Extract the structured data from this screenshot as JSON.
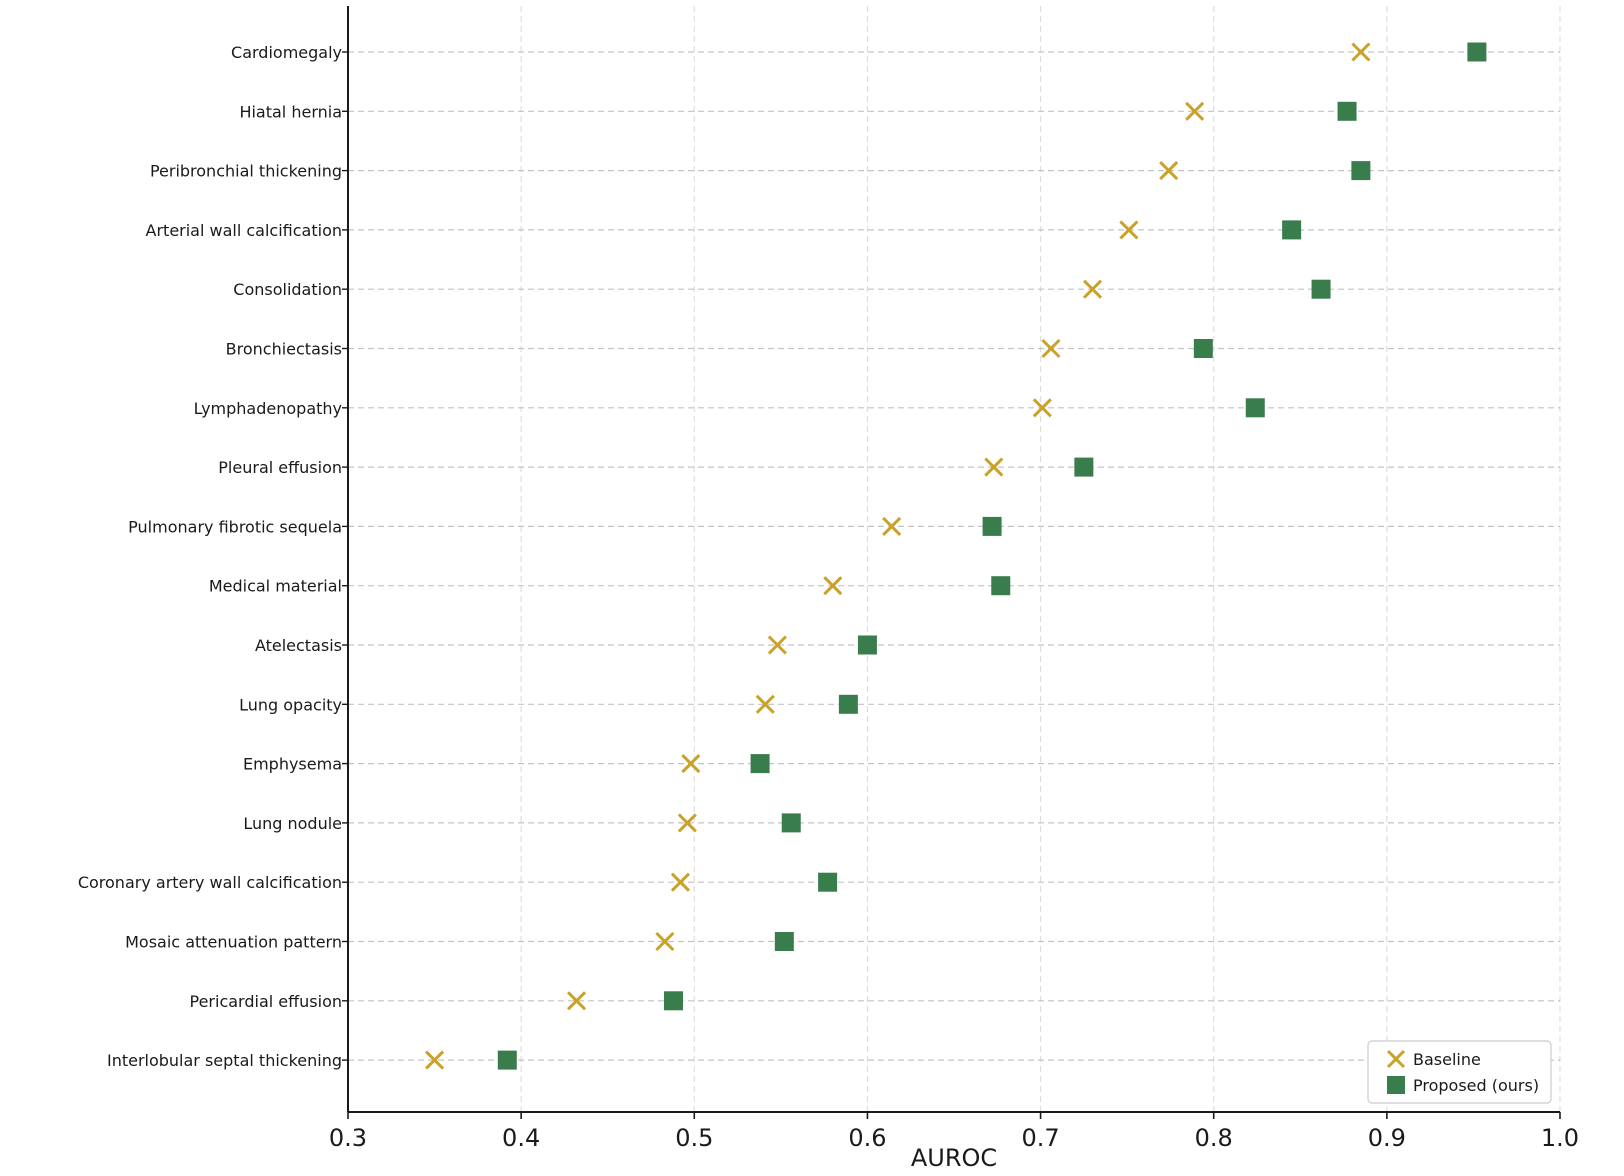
{
  "chart_data": {
    "type": "scatter",
    "orientation": "horizontal",
    "categories": [
      "Cardiomegaly",
      "Hiatal hernia",
      "Peribronchial thickening",
      "Arterial wall calcification",
      "Consolidation",
      "Bronchiectasis",
      "Lymphadenopathy",
      "Pleural effusion",
      "Pulmonary fibrotic sequela",
      "Medical material",
      "Atelectasis",
      "Lung opacity",
      "Emphysema",
      "Lung nodule",
      "Coronary artery wall calcification",
      "Mosaic attenuation pattern",
      "Pericardial effusion",
      "Interlobular septal thickening"
    ],
    "series": [
      {
        "name": "Baseline",
        "marker": "x",
        "color": "#C9A227",
        "values": [
          0.885,
          0.789,
          0.774,
          0.751,
          0.73,
          0.706,
          0.701,
          0.673,
          0.614,
          0.58,
          0.548,
          0.541,
          0.498,
          0.496,
          0.492,
          0.483,
          0.432,
          0.35
        ]
      },
      {
        "name": "Proposed (ours)",
        "marker": "square",
        "color": "#3A7D4D",
        "values": [
          0.952,
          0.877,
          0.885,
          0.845,
          0.862,
          0.794,
          0.824,
          0.725,
          0.672,
          0.677,
          0.6,
          0.589,
          0.538,
          0.556,
          0.577,
          0.552,
          0.488,
          0.392
        ]
      }
    ],
    "xlabel": "AUROC",
    "ylabel": "",
    "xlim": [
      0.3,
      1.0
    ],
    "xticks": [
      "0.3",
      "0.4",
      "0.5",
      "0.6",
      "0.7",
      "0.8",
      "0.9",
      "1.0"
    ],
    "grid": true,
    "legend_position": "bottom-right"
  }
}
